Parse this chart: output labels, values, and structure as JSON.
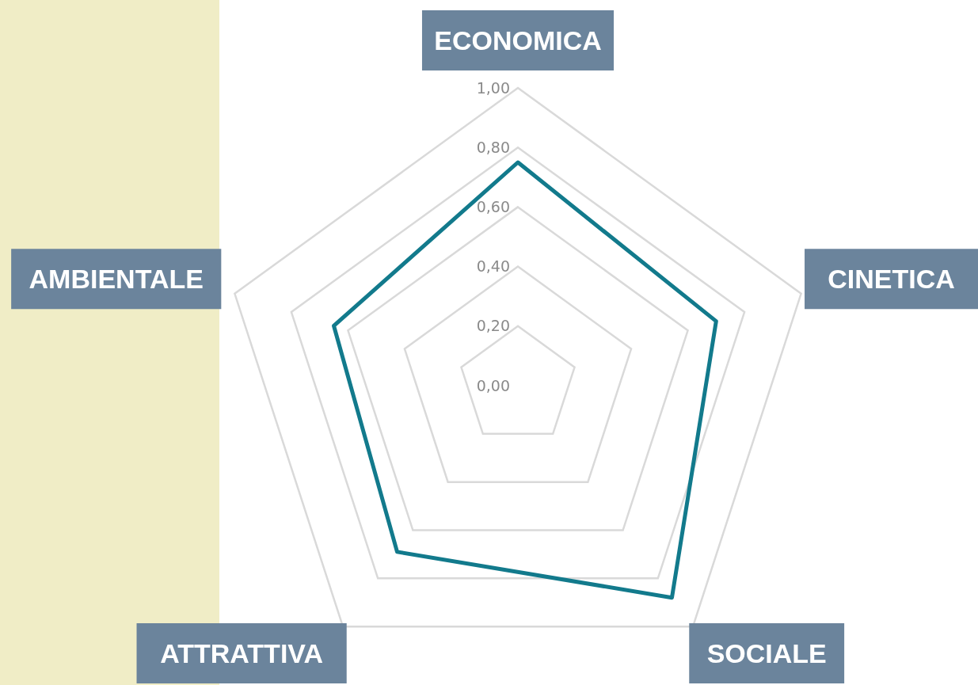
{
  "chart_data": {
    "type": "radar",
    "categories": [
      "ECONOMICA",
      "CINETICA",
      "SOCIALE",
      "ATTRATTIVA",
      "AMBIENTALE"
    ],
    "series": [
      {
        "color": "#127a8c",
        "values": [
          0.75,
          0.7,
          0.88,
          0.69,
          0.65
        ]
      }
    ],
    "ylim": [
      0,
      1
    ],
    "yticks": [
      {
        "value": 0,
        "label": "0,00"
      },
      {
        "value": 0.2,
        "label": "0,20"
      },
      {
        "value": 0.4,
        "label": "0,40"
      },
      {
        "value": 0.6,
        "label": "0,60"
      },
      {
        "value": 0.8,
        "label": "0,80"
      },
      {
        "value": 1,
        "label": "1,00"
      }
    ],
    "grid": true,
    "marker": "none"
  }
}
